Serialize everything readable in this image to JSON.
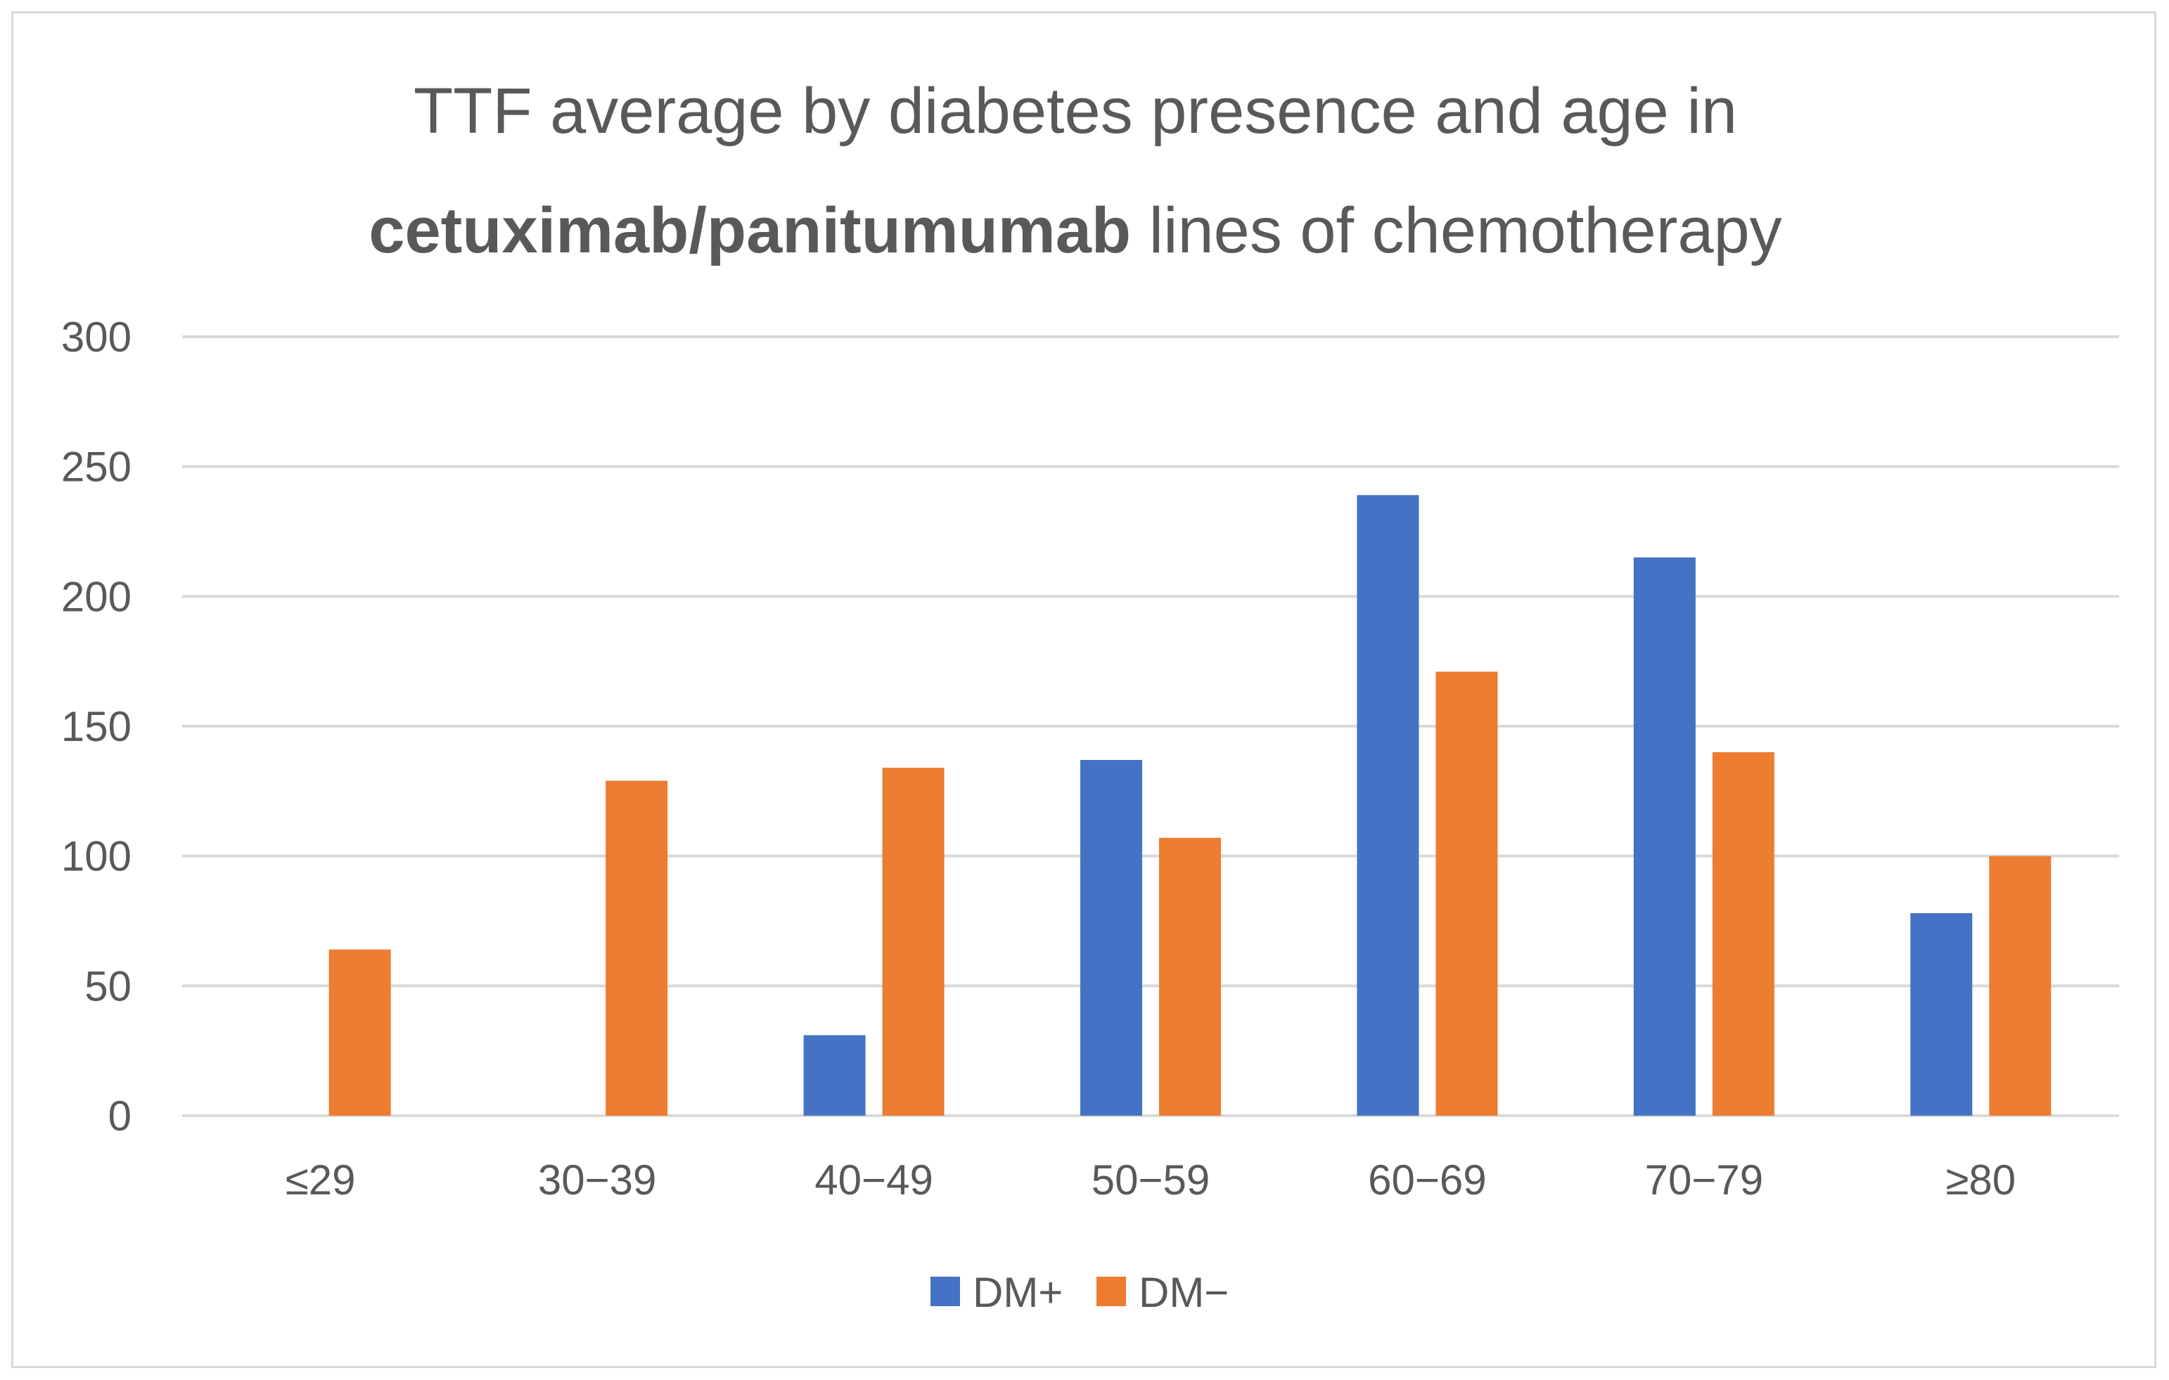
{
  "chart_data": {
    "type": "bar",
    "title": {
      "line1": "TTF average by diabetes presence  and age in",
      "line2_bold": "cetuximab/panitumumab",
      "line2_rest": " lines of chemotherapy"
    },
    "xlabel": "",
    "ylabel": "",
    "categories": [
      "≤29",
      "30−39",
      "40−49",
      "50−59",
      "60−69",
      "70−79",
      "≥80"
    ],
    "series": [
      {
        "name": "DM+",
        "color": "#4472c4",
        "values": [
          0,
          0,
          31,
          137,
          239,
          215,
          78
        ]
      },
      {
        "name": "DM−",
        "color": "#ed7d31",
        "values": [
          64,
          129,
          134,
          107,
          171,
          140,
          100
        ]
      }
    ],
    "ylim": [
      0,
      300
    ],
    "yticks": [
      "0",
      "50",
      "100",
      "150",
      "200",
      "250",
      "300"
    ],
    "grid": true,
    "legend_position": "bottom-center"
  }
}
